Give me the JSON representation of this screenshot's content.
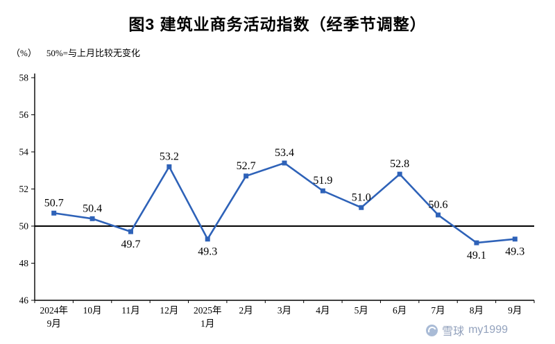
{
  "page": {
    "title": "图3  建筑业商务活动指数（经季节调整）",
    "unit_label": "（%）",
    "reference_note": "50%=与上月比较无变化",
    "watermark_site": "雪球",
    "watermark_user": "my1999"
  },
  "chart_data": {
    "type": "line",
    "title": "图3  建筑业商务活动指数（经季节调整）",
    "ylabel": "（%）",
    "reference_note": "50%=与上月比较无变化",
    "categories": [
      [
        "2024年",
        "9月"
      ],
      [
        "10月"
      ],
      [
        "11月"
      ],
      [
        "12月"
      ],
      [
        "2025年",
        "1月"
      ],
      [
        "2月"
      ],
      [
        "3月"
      ],
      [
        "4月"
      ],
      [
        "5月"
      ],
      [
        "6月"
      ],
      [
        "7月"
      ],
      [
        "8月"
      ],
      [
        "9月"
      ]
    ],
    "values": [
      50.7,
      50.4,
      49.7,
      53.2,
      49.3,
      52.7,
      53.4,
      51.9,
      51.0,
      52.8,
      50.6,
      49.1,
      49.3
    ],
    "point_labels": [
      "50.7",
      "50.4",
      "49.7",
      "53.2",
      "49.3",
      "52.7",
      "53.4",
      "51.9",
      "51.0",
      "52.8",
      "50.6",
      "49.1",
      "49.3"
    ],
    "label_positions": [
      "above",
      "above",
      "below",
      "above",
      "below",
      "above",
      "above",
      "above",
      "above",
      "above",
      "above",
      "below",
      "below"
    ],
    "ylim": [
      46,
      58
    ],
    "yticks": [
      46,
      48,
      50,
      52,
      54,
      56,
      58
    ],
    "reference_line": 50,
    "line_color": "#2e62b8",
    "axis_color": "#000000",
    "grid": false,
    "legend": "none",
    "marker": "square"
  }
}
